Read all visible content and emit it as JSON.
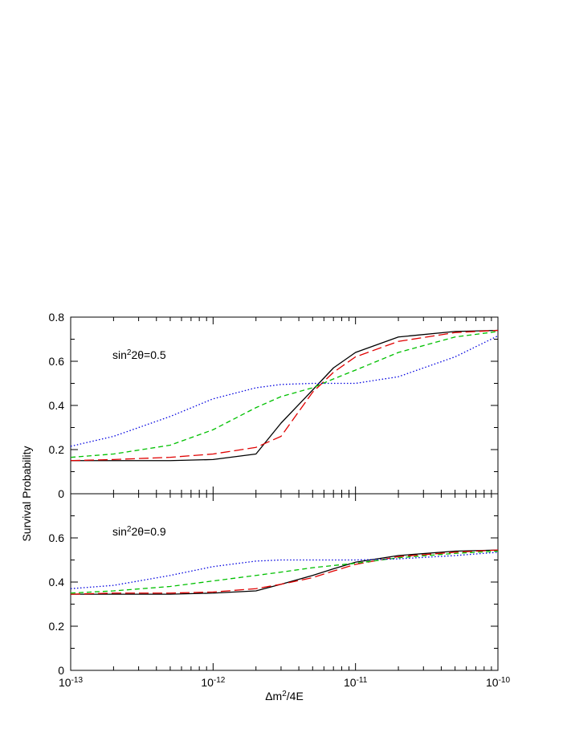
{
  "chart_data": [
    {
      "type": "line",
      "ylabel": "Survival Probability",
      "annotation": [
        "sin",
        "2",
        "2θ=0.5"
      ],
      "x": [
        1e-13,
        2e-13,
        5e-13,
        1e-12,
        2e-12,
        3e-12,
        5e-12,
        7e-12,
        1e-11,
        2e-11,
        5e-11,
        1e-10
      ],
      "xlim": [
        1e-13,
        1e-10
      ],
      "xscale": "log",
      "ylim": [
        0,
        0.8
      ],
      "yticks": [
        0,
        0.2,
        0.4,
        0.6,
        0.8
      ],
      "series": [
        {
          "color": "#000000",
          "dash": "solid",
          "values": [
            0.15,
            0.15,
            0.15,
            0.155,
            0.18,
            0.32,
            0.47,
            0.57,
            0.64,
            0.71,
            0.735,
            0.74
          ]
        },
        {
          "color": "#e00000",
          "dash": "long",
          "values": [
            0.15,
            0.155,
            0.165,
            0.18,
            0.21,
            0.26,
            0.46,
            0.55,
            0.62,
            0.69,
            0.73,
            0.74
          ]
        },
        {
          "color": "#00c000",
          "dash": "short",
          "values": [
            0.165,
            0.18,
            0.22,
            0.29,
            0.39,
            0.44,
            0.48,
            0.52,
            0.56,
            0.64,
            0.71,
            0.735
          ]
        },
        {
          "color": "#0000e0",
          "dash": "dot",
          "values": [
            0.215,
            0.26,
            0.35,
            0.43,
            0.48,
            0.495,
            0.5,
            0.5,
            0.5,
            0.53,
            0.62,
            0.715
          ]
        }
      ]
    },
    {
      "type": "line",
      "xlabel": [
        "Δm",
        "2",
        "/4E"
      ],
      "annotation": [
        "sin",
        "2",
        "2θ=0.9"
      ],
      "x": [
        1e-13,
        2e-13,
        5e-13,
        1e-12,
        2e-12,
        3e-12,
        5e-12,
        7e-12,
        1e-11,
        2e-11,
        5e-11,
        1e-10
      ],
      "xlim": [
        1e-13,
        1e-10
      ],
      "xscale": "log",
      "xticks": [
        {
          "value": 1e-13,
          "label": "10-13"
        },
        {
          "value": 1e-12,
          "label": "10-12"
        },
        {
          "value": 1e-11,
          "label": "10-11"
        },
        {
          "value": 1e-10,
          "label": "10-10"
        }
      ],
      "ylim": [
        0,
        0.8
      ],
      "yticks": [
        0,
        0.2,
        0.4,
        0.6
      ],
      "series": [
        {
          "color": "#000000",
          "dash": "solid",
          "values": [
            0.345,
            0.345,
            0.345,
            0.35,
            0.36,
            0.39,
            0.43,
            0.46,
            0.49,
            0.52,
            0.54,
            0.545
          ]
        },
        {
          "color": "#e00000",
          "dash": "long",
          "values": [
            0.345,
            0.35,
            0.35,
            0.355,
            0.37,
            0.39,
            0.42,
            0.45,
            0.48,
            0.515,
            0.535,
            0.545
          ]
        },
        {
          "color": "#00c000",
          "dash": "short",
          "values": [
            0.35,
            0.36,
            0.38,
            0.405,
            0.43,
            0.445,
            0.465,
            0.475,
            0.485,
            0.51,
            0.53,
            0.54
          ]
        },
        {
          "color": "#0000e0",
          "dash": "dot",
          "values": [
            0.37,
            0.385,
            0.43,
            0.47,
            0.495,
            0.5,
            0.5,
            0.5,
            0.5,
            0.505,
            0.52,
            0.535
          ]
        }
      ]
    }
  ]
}
